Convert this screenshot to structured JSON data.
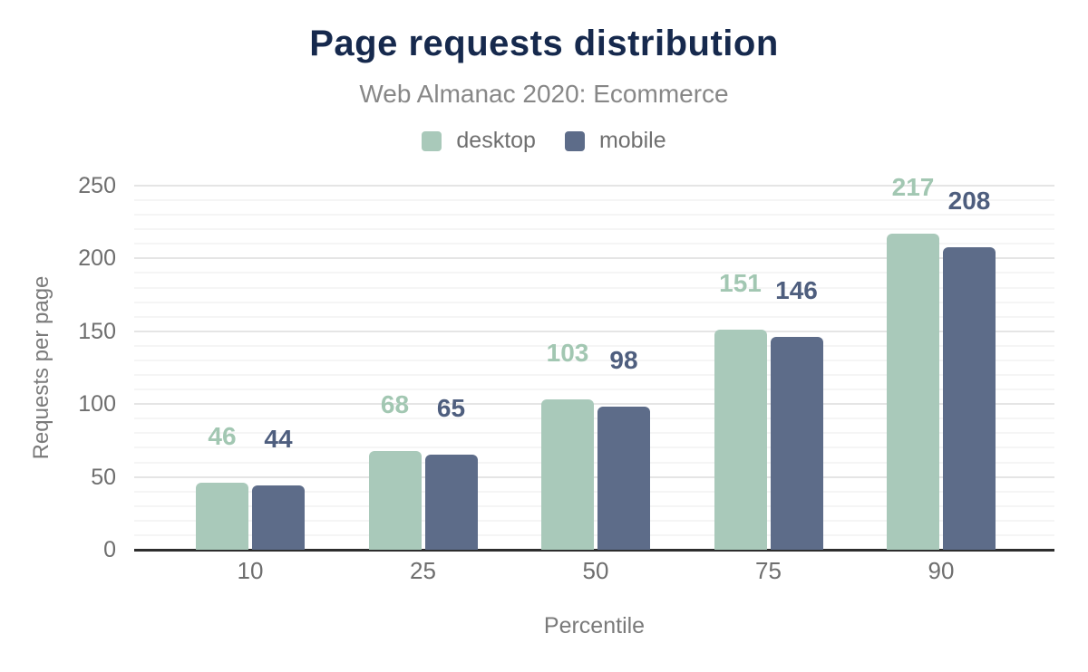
{
  "chart_data": {
    "type": "bar",
    "title": "Page requests distribution",
    "subtitle": "Web Almanac 2020: Ecommerce",
    "xlabel": "Percentile",
    "ylabel": "Requests per page",
    "categories": [
      "10",
      "25",
      "50",
      "75",
      "90"
    ],
    "series": [
      {
        "name": "desktop",
        "color": "#a9c9ba",
        "label_color": "#a2c7b2",
        "values": [
          46,
          68,
          103,
          151,
          217
        ]
      },
      {
        "name": "mobile",
        "color": "#5d6c89",
        "label_color": "#4e5e7e",
        "values": [
          44,
          65,
          98,
          146,
          208
        ]
      }
    ],
    "ylim": [
      0,
      250
    ],
    "yticks": [
      0,
      50,
      100,
      150,
      200,
      250
    ],
    "grid": {
      "major_step": 50,
      "minor_step": 10,
      "minor_on": true
    },
    "legend_position": "top"
  },
  "colors": {
    "background": "#ffffff",
    "title_text": "#16294d",
    "subtitle_text": "#878787",
    "axis_text": "#6e6e6e",
    "axis_title_text": "#7a7a7a",
    "axis_line": "#2d2d2d",
    "major_gridline": "#e5e5e5",
    "minor_gridline": "#f5f5f5"
  }
}
